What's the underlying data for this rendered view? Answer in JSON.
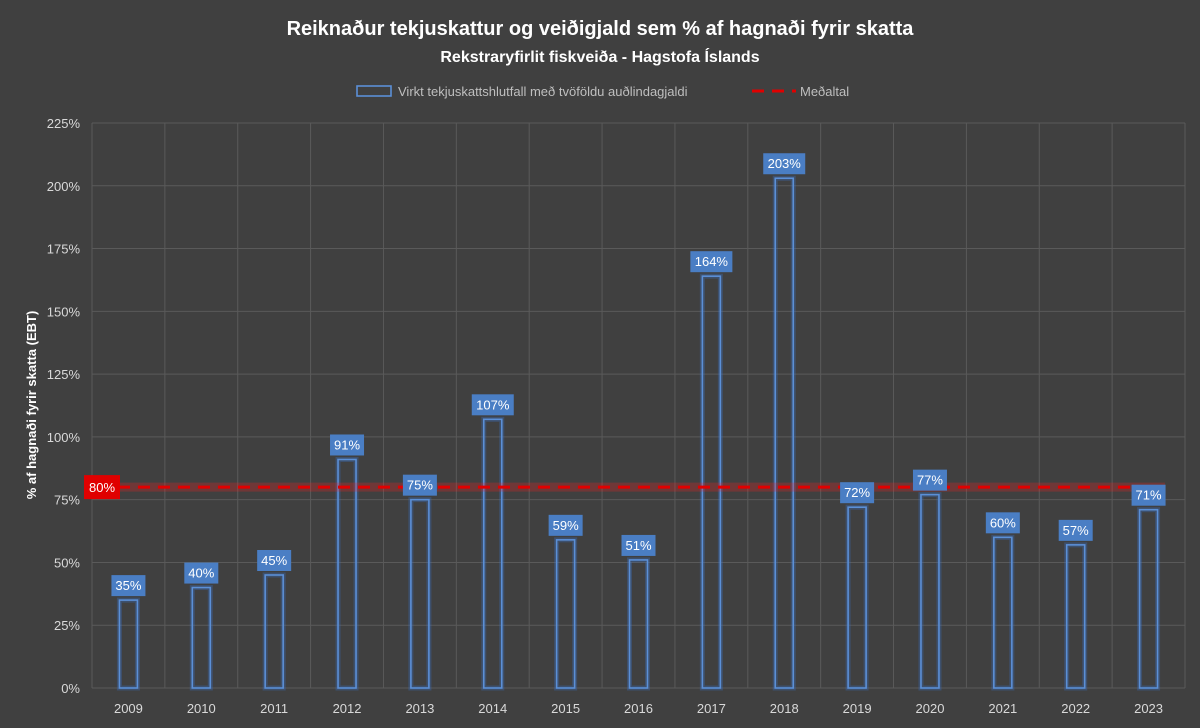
{
  "chart_data": {
    "type": "bar",
    "title": "Reiknaður tekjuskattur og veiðigjald sem % af hagnaði fyrir skatta",
    "subtitle": "Rekstraryfirlit fiskveiða - Hagstofa Íslands",
    "ylabel": "% af hagnaði fyrir skatta (EBT)",
    "xlabel": "",
    "categories": [
      "2009",
      "2010",
      "2011",
      "2012",
      "2013",
      "2014",
      "2015",
      "2016",
      "2017",
      "2018",
      "2019",
      "2020",
      "2021",
      "2022",
      "2023"
    ],
    "series": [
      {
        "name": "Virkt tekjuskattshlutfall með tvöföldu auðlindagjaldi",
        "values": [
          35,
          40,
          45,
          91,
          75,
          107,
          59,
          51,
          164,
          203,
          72,
          77,
          60,
          57,
          71
        ],
        "labels": [
          "35%",
          "40%",
          "45%",
          "91%",
          "75%",
          "107%",
          "59%",
          "51%",
          "164%",
          "203%",
          "72%",
          "77%",
          "60%",
          "57%",
          "71%"
        ],
        "color": "#5b8fd6"
      }
    ],
    "average": {
      "name": "Meðaltal",
      "value": 80,
      "label": "80%",
      "color": "#e00000"
    },
    "ylim": [
      0,
      225
    ],
    "yticks": [
      {
        "value": 0,
        "label": "0%"
      },
      {
        "value": 25,
        "label": "25%"
      },
      {
        "value": 50,
        "label": "50%"
      },
      {
        "value": 75,
        "label": "75%"
      },
      {
        "value": 100,
        "label": "100%"
      },
      {
        "value": 125,
        "label": "125%"
      },
      {
        "value": 150,
        "label": "150%"
      },
      {
        "value": 175,
        "label": "175%"
      },
      {
        "value": 200,
        "label": "200%"
      },
      {
        "value": 225,
        "label": "225%"
      }
    ],
    "grid": true,
    "legend_position": "top"
  }
}
